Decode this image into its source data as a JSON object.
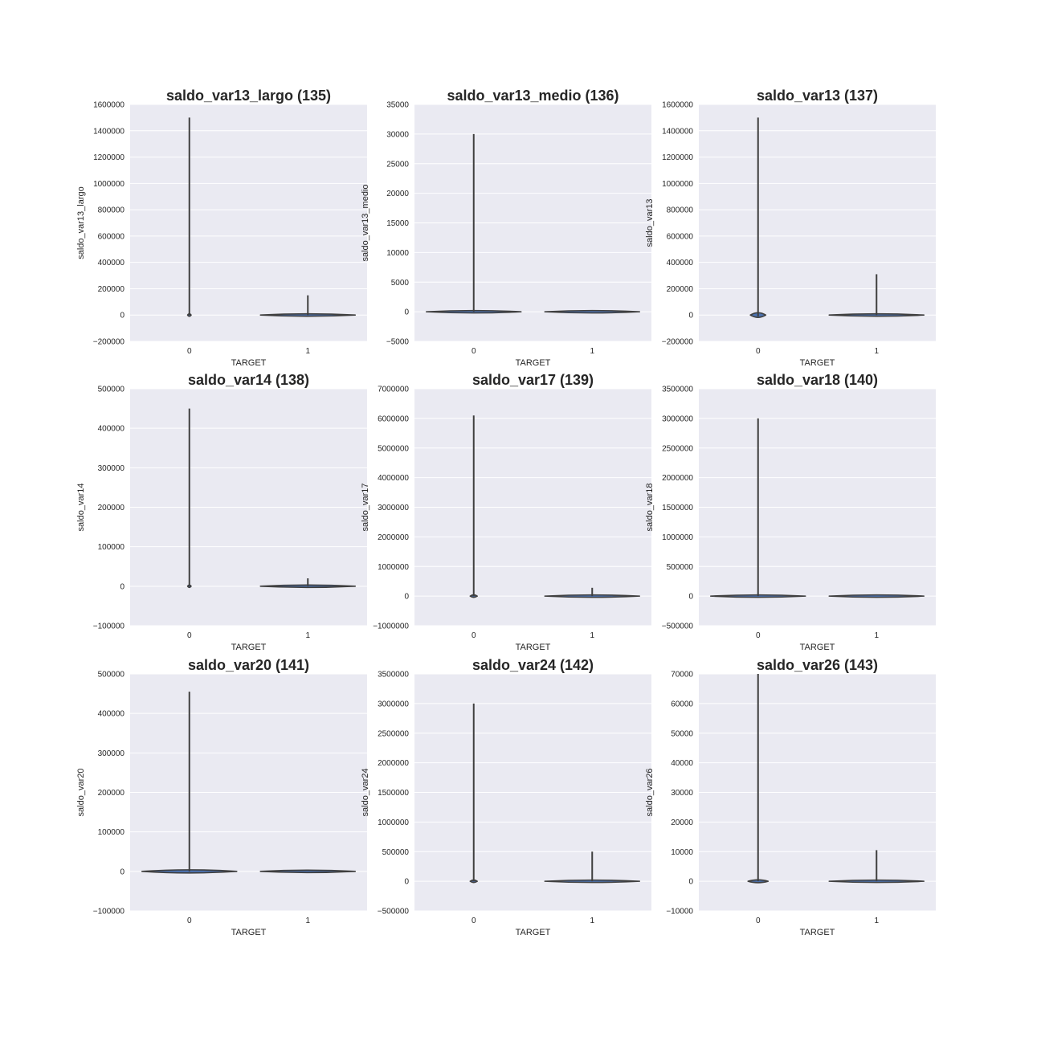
{
  "style": {
    "plot_bg": "#eaeaf2",
    "grid": "#ffffff",
    "violin_fill": "#4c72b0",
    "violin_edge": "#3f3f3f",
    "text": "#262626"
  },
  "chart_data": [
    {
      "type": "violin",
      "title": "saldo_var13_largo (135)",
      "xlabel": "TARGET",
      "ylabel": "saldo_var13_largo",
      "categories": [
        "0",
        "1"
      ],
      "yticks": [
        "−200000",
        "0",
        "200000",
        "400000",
        "600000",
        "800000",
        "1000000",
        "1200000",
        "1400000",
        "1600000"
      ],
      "ylim": [
        -200000,
        1600000
      ],
      "grid": true,
      "violins": [
        {
          "category": "0",
          "min": 0,
          "max": 1500000,
          "bulge_width": 0.03,
          "bulge_height": 8000
        },
        {
          "category": "1",
          "min": 0,
          "max": 150000,
          "bulge_width": 0.8,
          "bulge_height": 5000
        }
      ]
    },
    {
      "type": "violin",
      "title": "saldo_var13_medio (136)",
      "xlabel": "TARGET",
      "ylabel": "saldo_var13_medio",
      "categories": [
        "0",
        "1"
      ],
      "yticks": [
        "−5000",
        "0",
        "5000",
        "10000",
        "15000",
        "20000",
        "25000",
        "30000",
        "35000"
      ],
      "ylim": [
        -5000,
        35000
      ],
      "grid": true,
      "violins": [
        {
          "category": "0",
          "min": 0,
          "max": 30000,
          "bulge_width": 0.8,
          "bulge_height": 200
        },
        {
          "category": "1",
          "min": 0,
          "max": 0,
          "bulge_width": 0.8,
          "bulge_height": 60
        }
      ]
    },
    {
      "type": "violin",
      "title": "saldo_var13 (137)",
      "xlabel": "TARGET",
      "ylabel": "saldo_var13",
      "categories": [
        "0",
        "1"
      ],
      "yticks": [
        "−200000",
        "0",
        "200000",
        "400000",
        "600000",
        "800000",
        "1000000",
        "1200000",
        "1400000",
        "1600000"
      ],
      "ylim": [
        -200000,
        1600000
      ],
      "grid": true,
      "violins": [
        {
          "category": "0",
          "min": -10000,
          "max": 1500000,
          "bulge_width": 0.13,
          "bulge_height": 18000
        },
        {
          "category": "1",
          "min": 0,
          "max": 310000,
          "bulge_width": 0.8,
          "bulge_height": 7000
        }
      ]
    },
    {
      "type": "violin",
      "title": "saldo_var14 (138)",
      "xlabel": "TARGET",
      "ylabel": "saldo_var14",
      "categories": [
        "0",
        "1"
      ],
      "yticks": [
        "−100000",
        "0",
        "100000",
        "200000",
        "300000",
        "400000",
        "500000"
      ],
      "ylim": [
        -100000,
        500000
      ],
      "grid": true,
      "violins": [
        {
          "category": "0",
          "min": 0,
          "max": 450000,
          "bulge_width": 0.03,
          "bulge_height": 3000
        },
        {
          "category": "1",
          "min": 0,
          "max": 20000,
          "bulge_width": 0.8,
          "bulge_height": 1500
        }
      ]
    },
    {
      "type": "violin",
      "title": "saldo_var17 (139)",
      "xlabel": "TARGET",
      "ylabel": "saldo_var17",
      "categories": [
        "0",
        "1"
      ],
      "yticks": [
        "−1000000",
        "0",
        "1000000",
        "2000000",
        "3000000",
        "4000000",
        "5000000",
        "6000000",
        "7000000"
      ],
      "ylim": [
        -1000000,
        7000000
      ],
      "grid": true,
      "violins": [
        {
          "category": "0",
          "min": 0,
          "max": 6100000,
          "bulge_width": 0.06,
          "bulge_height": 40000
        },
        {
          "category": "1",
          "min": 0,
          "max": 280000,
          "bulge_width": 0.8,
          "bulge_height": 15000
        }
      ]
    },
    {
      "type": "violin",
      "title": "saldo_var18 (140)",
      "xlabel": "TARGET",
      "ylabel": "saldo_var18",
      "categories": [
        "0",
        "1"
      ],
      "yticks": [
        "−500000",
        "0",
        "500000",
        "1000000",
        "1500000",
        "2000000",
        "2500000",
        "3000000",
        "3500000"
      ],
      "ylim": [
        -500000,
        3500000
      ],
      "grid": true,
      "violins": [
        {
          "category": "0",
          "min": 0,
          "max": 3000000,
          "bulge_width": 0.8,
          "bulge_height": 20000
        },
        {
          "category": "1",
          "min": 0,
          "max": 0,
          "bulge_width": 0.8,
          "bulge_height": 6000
        }
      ]
    },
    {
      "type": "violin",
      "title": "saldo_var20 (141)",
      "xlabel": "TARGET",
      "ylabel": "saldo_var20",
      "categories": [
        "0",
        "1"
      ],
      "yticks": [
        "−100000",
        "0",
        "100000",
        "200000",
        "300000",
        "400000",
        "500000"
      ],
      "ylim": [
        -100000,
        500000
      ],
      "grid": true,
      "violins": [
        {
          "category": "0",
          "min": 0,
          "max": 455000,
          "bulge_width": 0.8,
          "bulge_height": 4000
        },
        {
          "category": "1",
          "min": 0,
          "max": 0,
          "bulge_width": 0.8,
          "bulge_height": 1000
        }
      ]
    },
    {
      "type": "violin",
      "title": "saldo_var24 (142)",
      "xlabel": "TARGET",
      "ylabel": "saldo_var24",
      "categories": [
        "0",
        "1"
      ],
      "yticks": [
        "−500000",
        "0",
        "500000",
        "1000000",
        "1500000",
        "2000000",
        "2500000",
        "3000000",
        "3500000"
      ],
      "ylim": [
        -500000,
        3500000
      ],
      "grid": true,
      "violins": [
        {
          "category": "0",
          "min": 0,
          "max": 3000000,
          "bulge_width": 0.06,
          "bulge_height": 20000
        },
        {
          "category": "1",
          "min": 0,
          "max": 500000,
          "bulge_width": 0.8,
          "bulge_height": 12000
        }
      ]
    },
    {
      "type": "violin",
      "title": "saldo_var26 (143)",
      "xlabel": "TARGET",
      "ylabel": "saldo_var26",
      "categories": [
        "0",
        "1"
      ],
      "yticks": [
        "−10000",
        "0",
        "10000",
        "20000",
        "30000",
        "40000",
        "50000",
        "60000",
        "70000"
      ],
      "ylim": [
        -10000,
        70000
      ],
      "grid": true,
      "violins": [
        {
          "category": "0",
          "min": 0,
          "max": 70000,
          "bulge_width": 0.17,
          "bulge_height": 500
        },
        {
          "category": "1",
          "min": 0,
          "max": 10500,
          "bulge_width": 0.8,
          "bulge_height": 250
        }
      ]
    }
  ]
}
